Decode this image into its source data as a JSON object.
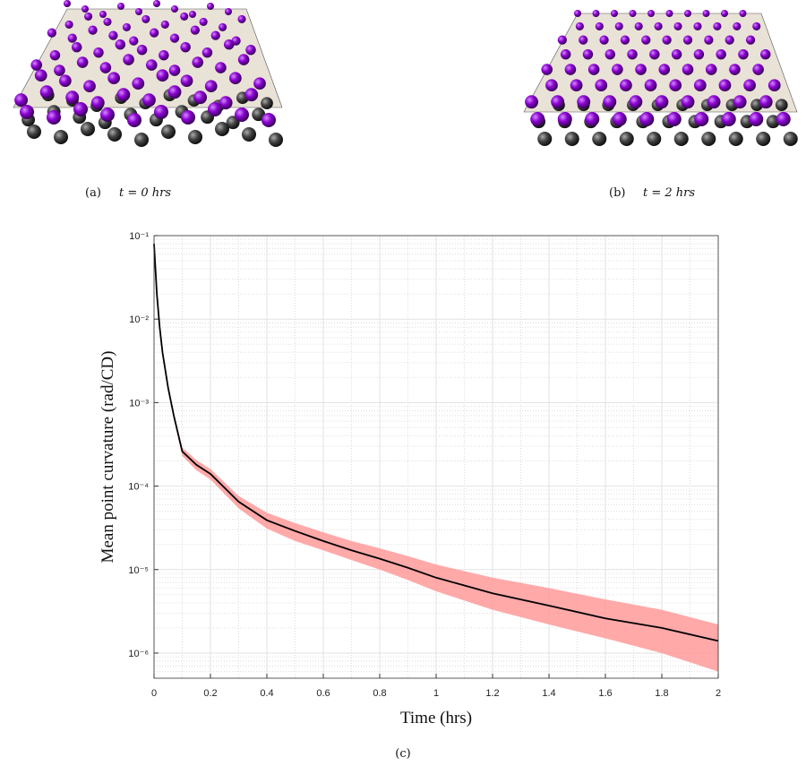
{
  "panels": [
    {
      "label": "(a)",
      "caption": "t = 0 hrs"
    },
    {
      "label": "(b)",
      "caption": "t = 2 hrs"
    }
  ],
  "chart_caption": "(c)",
  "chart_data": {
    "type": "line",
    "x_label": "Time (hrs)",
    "y_label": "Mean point curvature (rad/CD)",
    "log_y": true,
    "grid": true,
    "minor_grid": true,
    "xlim": [
      0,
      2
    ],
    "xticks": [
      0,
      0.2,
      0.4,
      0.6,
      0.8,
      1,
      1.2,
      1.4,
      1.6,
      1.8,
      2
    ],
    "ylim": [
      5e-07,
      0.1
    ],
    "yticks": [
      {
        "value": 1e-06,
        "label": "10⁻⁶"
      },
      {
        "value": 1e-05,
        "label": "10⁻⁵"
      },
      {
        "value": 0.0001,
        "label": "10⁻⁴"
      },
      {
        "value": 0.001,
        "label": "10⁻³"
      },
      {
        "value": 0.01,
        "label": "10⁻²"
      },
      {
        "value": 0.1,
        "label": "10⁻¹"
      }
    ],
    "x": [
      0,
      0.01,
      0.02,
      0.03,
      0.05,
      0.07,
      0.1,
      0.15,
      0.2,
      0.3,
      0.4,
      0.5,
      0.6,
      0.7,
      0.8,
      0.9,
      1,
      1.2,
      1.4,
      1.6,
      1.8,
      2
    ],
    "band": {
      "color": "#ff9a9a",
      "upper": [
        0.085,
        0.021,
        0.0085,
        0.0043,
        0.0016,
        0.00076,
        0.00029,
        0.000205,
        0.00016,
        7.6e-05,
        4.8e-05,
        3.6e-05,
        2.8e-05,
        2.2e-05,
        1.8e-05,
        1.45e-05,
        1.15e-05,
        8e-06,
        6e-06,
        4.4e-06,
        3.3e-06,
        2.2e-06
      ],
      "lower": [
        0.075,
        0.019,
        0.0075,
        0.0037,
        0.0014,
        0.00064,
        0.00023,
        0.000155,
        0.00012,
        5.4e-05,
        3.1e-05,
        2.2e-05,
        1.7e-05,
        1.3e-05,
        1e-05,
        7.5e-06,
        5.5e-06,
        3.3e-06,
        2.2e-06,
        1.5e-06,
        1e-06,
        6e-07
      ]
    },
    "series": [
      {
        "color": "#000000",
        "values": [
          0.08,
          0.02,
          0.008,
          0.004,
          0.0015,
          0.0007,
          0.00026,
          0.00018,
          0.00014,
          6.5e-05,
          3.9e-05,
          2.9e-05,
          2.2e-05,
          1.7e-05,
          1.35e-05,
          1.05e-05,
          8e-06,
          5.2e-06,
          3.7e-06,
          2.6e-06,
          2e-06,
          1.4e-06
        ]
      }
    ]
  }
}
